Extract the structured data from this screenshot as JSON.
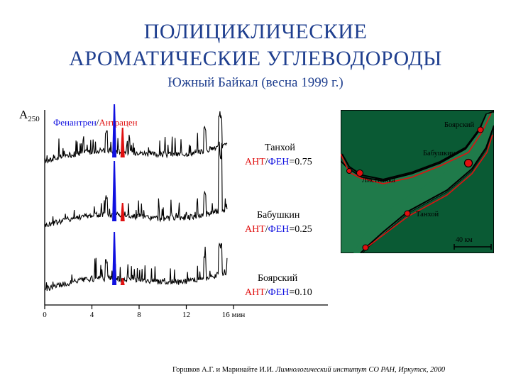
{
  "header": {
    "title_line1": "ПОЛИЦИКЛИЧЕСКИЕ",
    "title_line2": "АРОМАТИЧЕСКИЕ УГЛЕВОДОРОДЫ",
    "subtitle": "Южный Байкал (весна 1999 г.)"
  },
  "chart_data": {
    "type": "line",
    "y_label_main": "A",
    "y_label_sub": "250",
    "legend_phen": "Фенантрен",
    "legend_sep": "/",
    "legend_anth": "Антрацен",
    "xlabel_unit": "мин",
    "x_ticks": [
      "0",
      "4",
      "8",
      "12",
      "16"
    ],
    "xlim": [
      0,
      24
    ],
    "ratio_anth": "АНТ",
    "ratio_sep": "/",
    "ratio_phen": "ФЕН",
    "series": [
      {
        "name": "Танхой",
        "ratio": "=0.75"
      },
      {
        "name": "Бабушкин",
        "ratio": "=0.25"
      },
      {
        "name": "Боярский",
        "ratio": "=0.10"
      }
    ],
    "colors": {
      "phenanthrene": "#1010e0",
      "anthracene": "#e01010",
      "trace": "#000000"
    }
  },
  "map": {
    "labels": {
      "boyarsky": "Боярский",
      "babushkin": "Бабушкин",
      "listvyanka": "Листвянка",
      "tankhoy": "Танхой",
      "scale": "40 км"
    },
    "colors": {
      "water": "#1f7a4a",
      "shore": "#000000",
      "route": "#e01010"
    }
  },
  "footer": {
    "authors": "Горшков А.Г. и Маринайте И.И.",
    "institute": "Лимнологический институт СО РАН, Иркутск, 2000"
  }
}
